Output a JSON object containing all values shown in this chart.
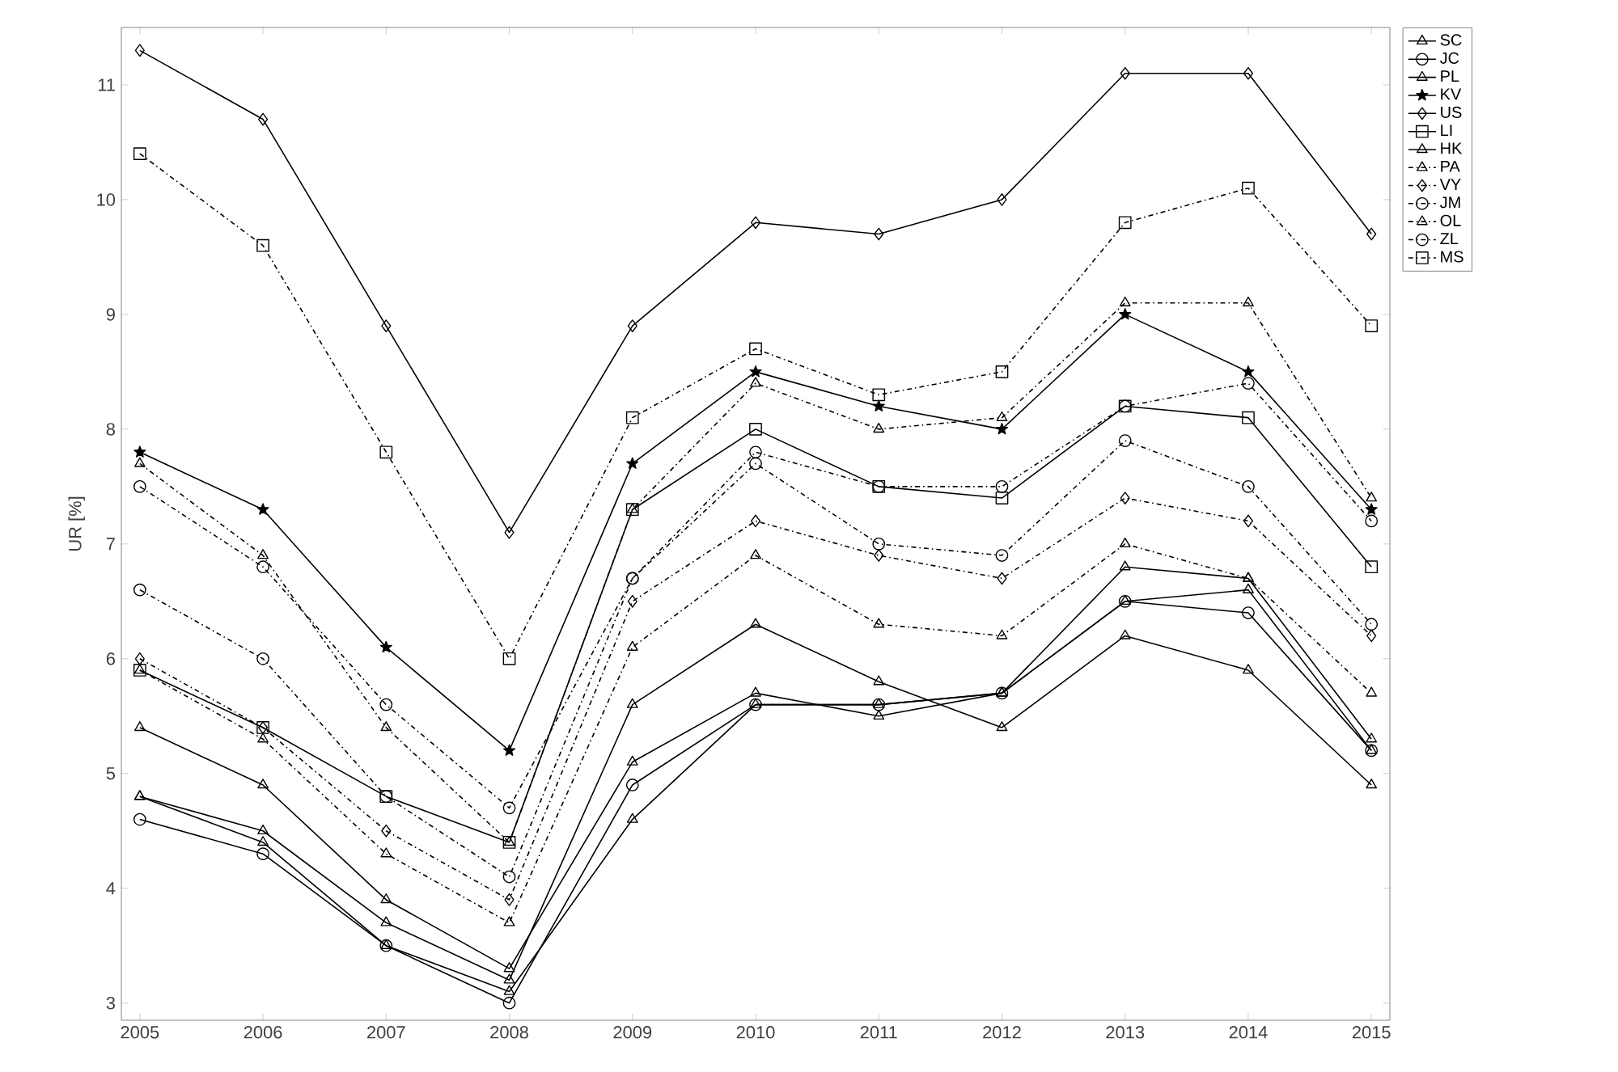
{
  "chart_data": {
    "type": "line",
    "ylabel": "UR [%]",
    "x": [
      2005,
      2006,
      2007,
      2008,
      2009,
      2010,
      2011,
      2012,
      2013,
      2014,
      2015
    ],
    "xlim": [
      2004.85,
      2015.15
    ],
    "ylim": [
      2.85,
      11.5
    ],
    "xticks": [
      2005,
      2006,
      2007,
      2008,
      2009,
      2010,
      2011,
      2012,
      2013,
      2014,
      2015
    ],
    "yticks": [
      3,
      4,
      5,
      6,
      7,
      8,
      9,
      10,
      11
    ],
    "legend": "right",
    "grid": false,
    "series": [
      {
        "name": "SC",
        "color": "#000000",
        "marker": "triangle",
        "line_style": "solid",
        "values": [
          4.8,
          4.4,
          3.5,
          3.1,
          4.6,
          5.6,
          5.6,
          5.7,
          6.5,
          6.6,
          5.2
        ]
      },
      {
        "name": "JC",
        "color": "#000000",
        "marker": "circle",
        "line_style": "solid",
        "values": [
          4.6,
          4.3,
          3.5,
          3.0,
          4.9,
          5.6,
          5.6,
          5.7,
          6.5,
          6.4,
          5.2
        ]
      },
      {
        "name": "PL",
        "color": "#000000",
        "marker": "triangle",
        "line_style": "solid",
        "values": [
          4.8,
          4.5,
          3.7,
          3.2,
          5.6,
          6.3,
          5.8,
          5.4,
          6.2,
          5.9,
          4.9
        ]
      },
      {
        "name": "KV",
        "color": "#000000",
        "marker": "star",
        "line_style": "solid",
        "values": [
          7.8,
          7.3,
          6.1,
          5.2,
          7.7,
          8.5,
          8.2,
          8.0,
          9.0,
          8.5,
          7.3
        ]
      },
      {
        "name": "US",
        "color": "#000000",
        "marker": "diamond",
        "line_style": "solid",
        "values": [
          11.3,
          10.7,
          8.9,
          7.1,
          8.9,
          9.8,
          9.7,
          10.0,
          11.1,
          11.1,
          9.7
        ]
      },
      {
        "name": "LI",
        "color": "#000000",
        "marker": "square",
        "line_style": "solid",
        "values": [
          5.9,
          5.4,
          4.8,
          4.4,
          7.3,
          8.0,
          7.5,
          7.4,
          8.2,
          8.1,
          6.8
        ]
      },
      {
        "name": "HK",
        "color": "#000000",
        "marker": "triangle",
        "line_style": "solid",
        "values": [
          5.4,
          4.9,
          3.9,
          3.3,
          5.1,
          5.7,
          5.5,
          5.7,
          6.8,
          6.7,
          5.3
        ]
      },
      {
        "name": "PA",
        "color": "#000000",
        "marker": "triangle",
        "line_style": "dashed",
        "values": [
          5.9,
          5.3,
          4.3,
          3.7,
          6.1,
          6.9,
          6.3,
          6.2,
          7.0,
          6.7,
          5.7
        ]
      },
      {
        "name": "VY",
        "color": "#000000",
        "marker": "diamond",
        "line_style": "dashed",
        "values": [
          6.0,
          5.4,
          4.5,
          3.9,
          6.5,
          7.2,
          6.9,
          6.7,
          7.4,
          7.2,
          6.2
        ]
      },
      {
        "name": "JM",
        "color": "#000000",
        "marker": "circle",
        "line_style": "dashed",
        "values": [
          7.5,
          6.8,
          5.6,
          4.7,
          6.7,
          7.8,
          7.5,
          7.5,
          8.2,
          8.4,
          7.2
        ]
      },
      {
        "name": "OL",
        "color": "#000000",
        "marker": "triangle",
        "line_style": "dashed",
        "values": [
          7.7,
          6.9,
          5.4,
          4.4,
          7.3,
          8.4,
          8.0,
          8.1,
          9.1,
          9.1,
          7.4
        ]
      },
      {
        "name": "ZL",
        "color": "#000000",
        "marker": "circle",
        "line_style": "dashed",
        "values": [
          6.6,
          6.0,
          4.8,
          4.1,
          6.7,
          7.7,
          7.0,
          6.9,
          7.9,
          7.5,
          6.3
        ]
      },
      {
        "name": "MS",
        "color": "#000000",
        "marker": "square",
        "line_style": "dashed",
        "values": [
          10.4,
          9.6,
          7.8,
          6.0,
          8.1,
          8.7,
          8.3,
          8.5,
          9.8,
          10.1,
          8.9
        ]
      }
    ]
  }
}
